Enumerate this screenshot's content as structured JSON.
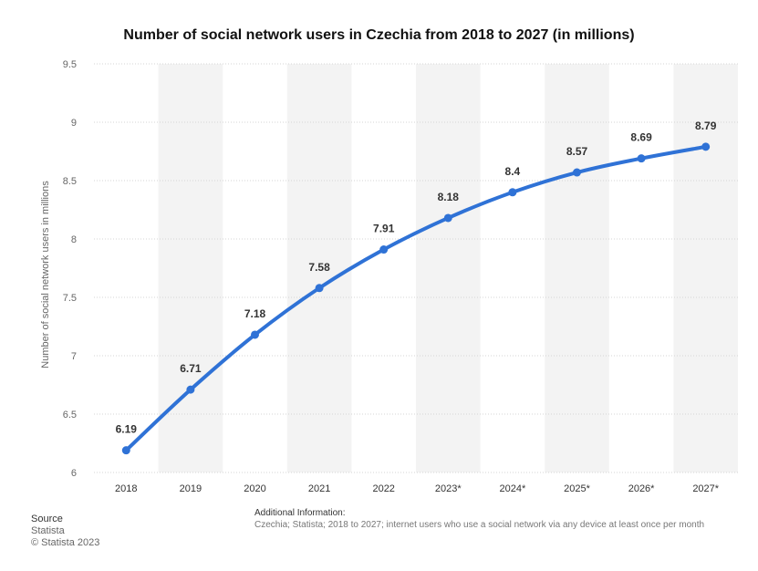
{
  "title": "Number of social network users in Czechia from 2018 to 2027 (in millions)",
  "colors": {
    "line": "#2f72d6",
    "band": "#f3f3f3",
    "grid": "#d4d4d4",
    "tick_text": "#666666",
    "label_text": "#333333"
  },
  "chart_data": {
    "type": "line",
    "categories": [
      "2018",
      "2019",
      "2020",
      "2021",
      "2022",
      "2023*",
      "2024*",
      "2025*",
      "2026*",
      "2027*"
    ],
    "series": [
      {
        "values": [
          6.19,
          6.71,
          7.18,
          7.58,
          7.91,
          8.18,
          8.4,
          8.57,
          8.69,
          8.79
        ]
      }
    ],
    "data_labels": [
      "6.19",
      "6.71",
      "7.18",
      "7.58",
      "7.91",
      "8.18",
      "8.4",
      "8.57",
      "8.69",
      "8.79"
    ],
    "ylabel": "Number of social network users in millions",
    "xlabel": "",
    "ylim": [
      6,
      9.5
    ],
    "yticks": [
      6,
      6.5,
      7,
      7.5,
      8,
      8.5,
      9,
      9.5
    ],
    "ytick_labels": [
      "6",
      "6.5",
      "7",
      "7.5",
      "8",
      "8.5",
      "9",
      "9.5"
    ],
    "grid": true,
    "legend": false
  },
  "footer": {
    "source_heading": "Source",
    "source_name": "Statista",
    "copyright": "© Statista 2023",
    "info_heading": "Additional Information:",
    "info_text": "Czechia; Statista; 2018 to 2027; internet users who use a social network via any device at least once per month"
  }
}
